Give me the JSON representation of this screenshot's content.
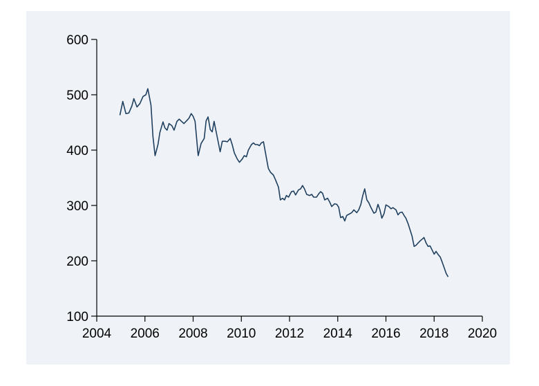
{
  "chart_data": {
    "type": "line",
    "title": "",
    "xlabel": "",
    "ylabel": "",
    "xlim": [
      2004,
      2020
    ],
    "ylim": [
      100,
      600
    ],
    "x_ticks": [
      "2004",
      "2006",
      "2008",
      "2010",
      "2012",
      "2014",
      "2016",
      "2018",
      "2020"
    ],
    "y_ticks": [
      "100",
      "200",
      "300",
      "400",
      "500",
      "600"
    ],
    "grid": false,
    "legend": "none",
    "colors": {
      "line": "#1f3f5e",
      "background": "#eff3f7"
    },
    "series": [
      {
        "points": [
          [
            2004.96,
            463
          ],
          [
            2005.08,
            488
          ],
          [
            2005.21,
            466
          ],
          [
            2005.33,
            467
          ],
          [
            2005.46,
            480
          ],
          [
            2005.54,
            493
          ],
          [
            2005.67,
            478
          ],
          [
            2005.79,
            484
          ],
          [
            2005.92,
            497
          ],
          [
            2006.04,
            500
          ],
          [
            2006.12,
            511
          ],
          [
            2006.25,
            481
          ],
          [
            2006.33,
            425
          ],
          [
            2006.42,
            390
          ],
          [
            2006.54,
            410
          ],
          [
            2006.62,
            432
          ],
          [
            2006.75,
            451
          ],
          [
            2006.83,
            440
          ],
          [
            2006.92,
            436
          ],
          [
            2007.0,
            448
          ],
          [
            2007.12,
            444
          ],
          [
            2007.21,
            436
          ],
          [
            2007.33,
            452
          ],
          [
            2007.42,
            456
          ],
          [
            2007.54,
            451
          ],
          [
            2007.62,
            448
          ],
          [
            2007.75,
            454
          ],
          [
            2007.83,
            458
          ],
          [
            2007.92,
            466
          ],
          [
            2008.0,
            461
          ],
          [
            2008.08,
            452
          ],
          [
            2008.21,
            390
          ],
          [
            2008.33,
            412
          ],
          [
            2008.46,
            421
          ],
          [
            2008.54,
            453
          ],
          [
            2008.62,
            460
          ],
          [
            2008.71,
            437
          ],
          [
            2008.79,
            433
          ],
          [
            2008.87,
            452
          ],
          [
            2008.96,
            432
          ],
          [
            2009.12,
            397
          ],
          [
            2009.21,
            416
          ],
          [
            2009.33,
            416
          ],
          [
            2009.42,
            415
          ],
          [
            2009.54,
            421
          ],
          [
            2009.62,
            410
          ],
          [
            2009.71,
            395
          ],
          [
            2009.83,
            384
          ],
          [
            2009.92,
            378
          ],
          [
            2010.04,
            384
          ],
          [
            2010.12,
            390
          ],
          [
            2010.21,
            388
          ],
          [
            2010.29,
            400
          ],
          [
            2010.42,
            410
          ],
          [
            2010.5,
            413
          ],
          [
            2010.58,
            410
          ],
          [
            2010.67,
            410
          ],
          [
            2010.75,
            408
          ],
          [
            2010.83,
            413
          ],
          [
            2010.92,
            415
          ],
          [
            2011.04,
            386
          ],
          [
            2011.12,
            367
          ],
          [
            2011.21,
            360
          ],
          [
            2011.33,
            355
          ],
          [
            2011.42,
            346
          ],
          [
            2011.54,
            333
          ],
          [
            2011.62,
            310
          ],
          [
            2011.71,
            313
          ],
          [
            2011.79,
            310
          ],
          [
            2011.87,
            318
          ],
          [
            2011.96,
            315
          ],
          [
            2012.08,
            325
          ],
          [
            2012.17,
            326
          ],
          [
            2012.25,
            319
          ],
          [
            2012.37,
            328
          ],
          [
            2012.46,
            330
          ],
          [
            2012.54,
            336
          ],
          [
            2012.62,
            330
          ],
          [
            2012.71,
            320
          ],
          [
            2012.83,
            318
          ],
          [
            2012.92,
            320
          ],
          [
            2013.0,
            315
          ],
          [
            2013.12,
            315
          ],
          [
            2013.21,
            321
          ],
          [
            2013.29,
            325
          ],
          [
            2013.37,
            322
          ],
          [
            2013.46,
            310
          ],
          [
            2013.58,
            313
          ],
          [
            2013.67,
            306
          ],
          [
            2013.75,
            298
          ],
          [
            2013.87,
            303
          ],
          [
            2013.96,
            302
          ],
          [
            2014.04,
            297
          ],
          [
            2014.12,
            278
          ],
          [
            2014.21,
            280
          ],
          [
            2014.29,
            272
          ],
          [
            2014.37,
            282
          ],
          [
            2014.5,
            285
          ],
          [
            2014.58,
            287
          ],
          [
            2014.67,
            292
          ],
          [
            2014.79,
            287
          ],
          [
            2014.87,
            292
          ],
          [
            2014.96,
            302
          ],
          [
            2015.04,
            318
          ],
          [
            2015.12,
            330
          ],
          [
            2015.21,
            310
          ],
          [
            2015.29,
            305
          ],
          [
            2015.37,
            297
          ],
          [
            2015.5,
            286
          ],
          [
            2015.58,
            288
          ],
          [
            2015.67,
            302
          ],
          [
            2015.75,
            292
          ],
          [
            2015.83,
            277
          ],
          [
            2015.92,
            285
          ],
          [
            2016.0,
            301
          ],
          [
            2016.12,
            298
          ],
          [
            2016.21,
            294
          ],
          [
            2016.29,
            296
          ],
          [
            2016.42,
            292
          ],
          [
            2016.5,
            283
          ],
          [
            2016.58,
            287
          ],
          [
            2016.67,
            288
          ],
          [
            2016.75,
            282
          ],
          [
            2016.83,
            277
          ],
          [
            2016.92,
            267
          ],
          [
            2017.0,
            256
          ],
          [
            2017.08,
            245
          ],
          [
            2017.17,
            226
          ],
          [
            2017.25,
            228
          ],
          [
            2017.33,
            232
          ],
          [
            2017.42,
            236
          ],
          [
            2017.5,
            239
          ],
          [
            2017.58,
            242
          ],
          [
            2017.67,
            232
          ],
          [
            2017.75,
            226
          ],
          [
            2017.83,
            227
          ],
          [
            2017.92,
            219
          ],
          [
            2018.0,
            212
          ],
          [
            2018.08,
            217
          ],
          [
            2018.17,
            211
          ],
          [
            2018.25,
            207
          ],
          [
            2018.33,
            198
          ],
          [
            2018.42,
            187
          ],
          [
            2018.5,
            177
          ],
          [
            2018.58,
            171
          ]
        ]
      }
    ]
  }
}
